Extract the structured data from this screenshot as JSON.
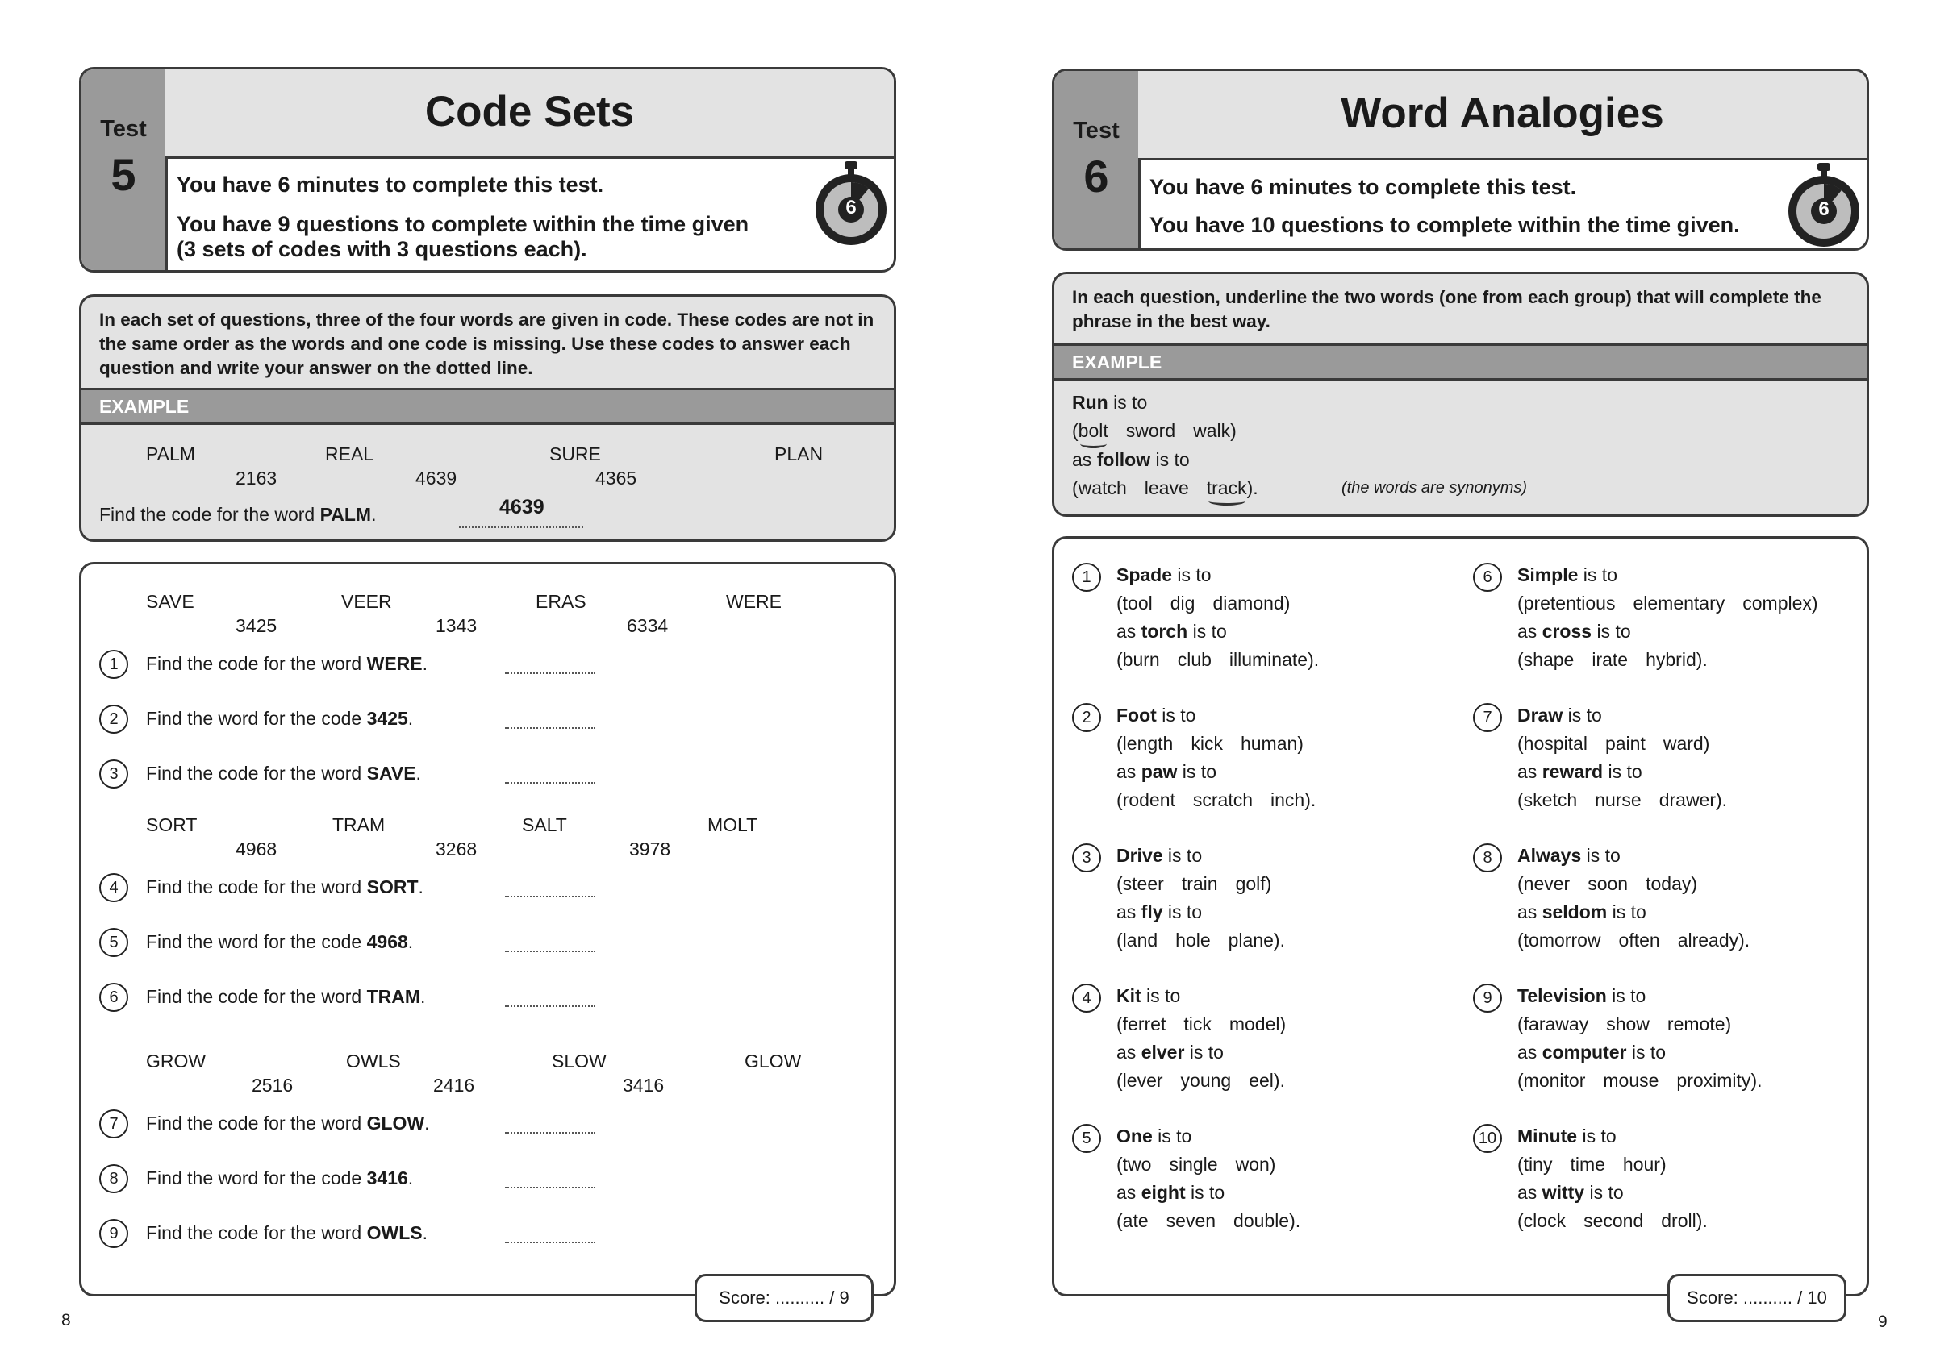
{
  "left_page": {
    "test_label": "Test",
    "test_number": "5",
    "title": "Code Sets",
    "info_line1": "You have 6 minutes to complete this test.",
    "info_line2": "You have 9 questions to complete within the time given",
    "info_line3": "(3 sets of codes with 3 questions each).",
    "timer_minutes": "6",
    "instructions": "In each set of questions, three of the four words are given in code. These codes are not in the same order as the words and one code is missing. Use these codes to answer each question and write your answer on the dotted line.",
    "example_label": "EXAMPLE",
    "example": {
      "words": [
        "PALM",
        "REAL",
        "SURE",
        "PLAN"
      ],
      "codes": [
        "2163",
        "4639",
        "4365"
      ],
      "prompt": "Find the code for the word ",
      "keyword": "PALM",
      "end": ".",
      "answer": "4639"
    },
    "sets": [
      {
        "words": [
          "SAVE",
          "VEER",
          "ERAS",
          "WERE"
        ],
        "codes": [
          "3425",
          "1343",
          "6334"
        ],
        "questions": [
          {
            "n": "1",
            "prompt": "Find the code for the word ",
            "keyword": "WERE",
            "end": "."
          },
          {
            "n": "2",
            "prompt": "Find the word for the code ",
            "keyword": "3425",
            "end": "."
          },
          {
            "n": "3",
            "prompt": "Find the code for the word ",
            "keyword": "SAVE",
            "end": "."
          }
        ]
      },
      {
        "words": [
          "SORT",
          "TRAM",
          "SALT",
          "MOLT"
        ],
        "codes": [
          "4968",
          "3268",
          "3978"
        ],
        "questions": [
          {
            "n": "4",
            "prompt": "Find the code for the word ",
            "keyword": "SORT",
            "end": "."
          },
          {
            "n": "5",
            "prompt": "Find the word for the code ",
            "keyword": "4968",
            "end": "."
          },
          {
            "n": "6",
            "prompt": "Find the code for the word ",
            "keyword": "TRAM",
            "end": "."
          }
        ]
      },
      {
        "words": [
          "GROW",
          "OWLS",
          "SLOW",
          "GLOW"
        ],
        "codes": [
          "2516",
          "2416",
          "3416"
        ],
        "questions": [
          {
            "n": "7",
            "prompt": "Find the code for the word ",
            "keyword": "GLOW",
            "end": "."
          },
          {
            "n": "8",
            "prompt": "Find the word for the code ",
            "keyword": "3416",
            "end": "."
          },
          {
            "n": "9",
            "prompt": "Find the code for the word ",
            "keyword": "OWLS",
            "end": "."
          }
        ]
      }
    ],
    "score": "Score: .......... / 9",
    "page_number": "8"
  },
  "right_page": {
    "test_label": "Test",
    "test_number": "6",
    "title": "Word Analogies",
    "info_line1": "You have 6 minutes to complete this test.",
    "info_line2": "You have 10 questions to complete within the time given.",
    "timer_minutes": "6",
    "instructions": "In each question, underline the two words (one from each group) that will complete the phrase in the best way.",
    "example_label": "EXAMPLE",
    "example": {
      "a": "Run",
      "is_to": " is to",
      "group1": [
        "bolt",
        "sword",
        "walk"
      ],
      "as": "as ",
      "b": "follow",
      "group2": [
        "watch",
        "leave",
        "track"
      ],
      "underlined": [
        "bolt",
        "track"
      ],
      "note": "(the words are synonyms)"
    },
    "questions": [
      {
        "n": "1",
        "a": "Spade",
        "group1": [
          "tool",
          "dig",
          "diamond"
        ],
        "b": "torch",
        "group2": [
          "burn",
          "club",
          "illuminate"
        ]
      },
      {
        "n": "2",
        "a": "Foot",
        "group1": [
          "length",
          "kick",
          "human"
        ],
        "b": "paw",
        "group2": [
          "rodent",
          "scratch",
          "inch"
        ]
      },
      {
        "n": "3",
        "a": "Drive",
        "group1": [
          "steer",
          "train",
          "golf"
        ],
        "b": "fly",
        "group2": [
          "land",
          "hole",
          "plane"
        ]
      },
      {
        "n": "4",
        "a": "Kit",
        "group1": [
          "ferret",
          "tick",
          "model"
        ],
        "b": "elver",
        "group2": [
          "lever",
          "young",
          "eel"
        ]
      },
      {
        "n": "5",
        "a": "One",
        "group1": [
          "two",
          "single",
          "won"
        ],
        "b": "eight",
        "group2": [
          "ate",
          "seven",
          "double"
        ]
      },
      {
        "n": "6",
        "a": "Simple",
        "group1": [
          "pretentious",
          "elementary",
          "complex"
        ],
        "b": "cross",
        "group2": [
          "shape",
          "irate",
          "hybrid"
        ]
      },
      {
        "n": "7",
        "a": "Draw",
        "group1": [
          "hospital",
          "paint",
          "ward"
        ],
        "b": "reward",
        "group2": [
          "sketch",
          "nurse",
          "drawer"
        ]
      },
      {
        "n": "8",
        "a": "Always",
        "group1": [
          "never",
          "soon",
          "today"
        ],
        "b": "seldom",
        "group2": [
          "tomorrow",
          "often",
          "already"
        ]
      },
      {
        "n": "9",
        "a": "Television",
        "group1": [
          "faraway",
          "show",
          "remote"
        ],
        "b": "computer",
        "group2": [
          "monitor",
          "mouse",
          "proximity"
        ]
      },
      {
        "n": "10",
        "a": "Minute",
        "group1": [
          "tiny",
          "time",
          "hour"
        ],
        "b": "witty",
        "group2": [
          "clock",
          "second",
          "droll"
        ]
      }
    ],
    "score": "Score: .......... / 10",
    "page_number": "9"
  }
}
